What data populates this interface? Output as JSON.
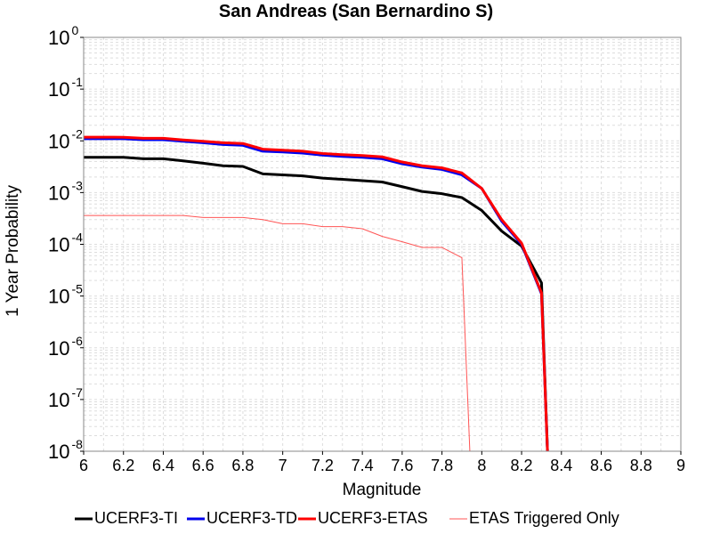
{
  "chart_data": {
    "type": "line",
    "title": "San Andreas (San Bernardino S)",
    "xlabel": "Magnitude",
    "ylabel": "1 Year Probability",
    "xlim": [
      6,
      9
    ],
    "ylim": [
      1e-08,
      1
    ],
    "yscale": "log",
    "grid": true,
    "legend_position": "bottom",
    "xticks": [
      6,
      6.2,
      6.4,
      6.6,
      6.8,
      7,
      7.2,
      7.4,
      7.6,
      7.8,
      8,
      8.2,
      8.4,
      8.6,
      8.8,
      9
    ],
    "xtick_labels": [
      "6",
      "6.2",
      "6.4",
      "6.6",
      "6.8",
      "7",
      "7.2",
      "7.4",
      "7.6",
      "7.8",
      "8",
      "8.2",
      "8.4",
      "8.6",
      "8.8",
      "9"
    ],
    "yticks": [
      {
        "value": 1,
        "base": "10",
        "exp": "0"
      },
      {
        "value": 0.1,
        "base": "10",
        "exp": "-1"
      },
      {
        "value": 0.01,
        "base": "10",
        "exp": "-2"
      },
      {
        "value": 0.001,
        "base": "10",
        "exp": "-3"
      },
      {
        "value": 0.0001,
        "base": "10",
        "exp": "-4"
      },
      {
        "value": 1e-05,
        "base": "10",
        "exp": "-5"
      },
      {
        "value": 1e-06,
        "base": "10",
        "exp": "-6"
      },
      {
        "value": 1e-07,
        "base": "10",
        "exp": "-7"
      },
      {
        "value": 1e-08,
        "base": "10",
        "exp": "-8"
      }
    ],
    "series": [
      {
        "name": "UCERF3-TI",
        "color": "#000000",
        "width": 3,
        "x": [
          6.0,
          6.1,
          6.2,
          6.3,
          6.4,
          6.5,
          6.6,
          6.7,
          6.8,
          6.9,
          7.0,
          7.1,
          7.2,
          7.3,
          7.4,
          7.5,
          7.6,
          7.7,
          7.8,
          7.9,
          8.0,
          8.1,
          8.2,
          8.3,
          8.33
        ],
        "y": [
          0.0048,
          0.0048,
          0.0048,
          0.0045,
          0.0045,
          0.0041,
          0.0037,
          0.0033,
          0.0032,
          0.0023,
          0.0022,
          0.0021,
          0.0019,
          0.0018,
          0.0017,
          0.0016,
          0.0013,
          0.00105,
          0.00095,
          0.0008,
          0.00045,
          0.00018,
          9.2e-05,
          1.8e-05,
          1e-08
        ]
      },
      {
        "name": "UCERF3-TD",
        "color": "#0000ee",
        "width": 3,
        "x": [
          6.0,
          6.1,
          6.2,
          6.3,
          6.4,
          6.5,
          6.6,
          6.7,
          6.8,
          6.9,
          7.0,
          7.1,
          7.2,
          7.3,
          7.4,
          7.5,
          7.6,
          7.7,
          7.8,
          7.9,
          8.0,
          8.1,
          8.2,
          8.3,
          8.33
        ],
        "y": [
          0.011,
          0.011,
          0.011,
          0.0105,
          0.0105,
          0.0098,
          0.0092,
          0.0085,
          0.0082,
          0.0063,
          0.0061,
          0.0058,
          0.0053,
          0.005,
          0.0048,
          0.0045,
          0.0036,
          0.0031,
          0.0028,
          0.0022,
          0.0012,
          0.00028,
          0.0001,
          1.1e-05,
          1e-08
        ]
      },
      {
        "name": "UCERF3-ETAS",
        "color": "#ff0000",
        "width": 3,
        "x": [
          6.0,
          6.1,
          6.2,
          6.3,
          6.4,
          6.5,
          6.6,
          6.7,
          6.8,
          6.9,
          7.0,
          7.1,
          7.2,
          7.3,
          7.4,
          7.5,
          7.6,
          7.7,
          7.8,
          7.9,
          8.0,
          8.1,
          8.2,
          8.3,
          8.33
        ],
        "y": [
          0.0118,
          0.0118,
          0.0117,
          0.0112,
          0.0112,
          0.0104,
          0.0098,
          0.0092,
          0.0089,
          0.0069,
          0.0066,
          0.0063,
          0.0057,
          0.0054,
          0.0052,
          0.0049,
          0.0039,
          0.0033,
          0.003,
          0.0024,
          0.0012,
          0.0003,
          0.000105,
          1.15e-05,
          1e-08
        ]
      },
      {
        "name": "ETAS Triggered Only",
        "color": "#ff5555",
        "width": 1,
        "x": [
          6.0,
          6.1,
          6.2,
          6.3,
          6.4,
          6.5,
          6.6,
          6.7,
          6.8,
          6.9,
          7.0,
          7.1,
          7.2,
          7.3,
          7.4,
          7.5,
          7.6,
          7.7,
          7.8,
          7.9,
          7.94
        ],
        "y": [
          0.00036,
          0.00036,
          0.00036,
          0.00036,
          0.00036,
          0.00036,
          0.00033,
          0.00033,
          0.00033,
          0.0003,
          0.00025,
          0.00025,
          0.00022,
          0.00022,
          0.0002,
          0.000142,
          0.000112,
          8.7e-05,
          8.7e-05,
          5.5e-05,
          1e-08
        ]
      }
    ]
  }
}
